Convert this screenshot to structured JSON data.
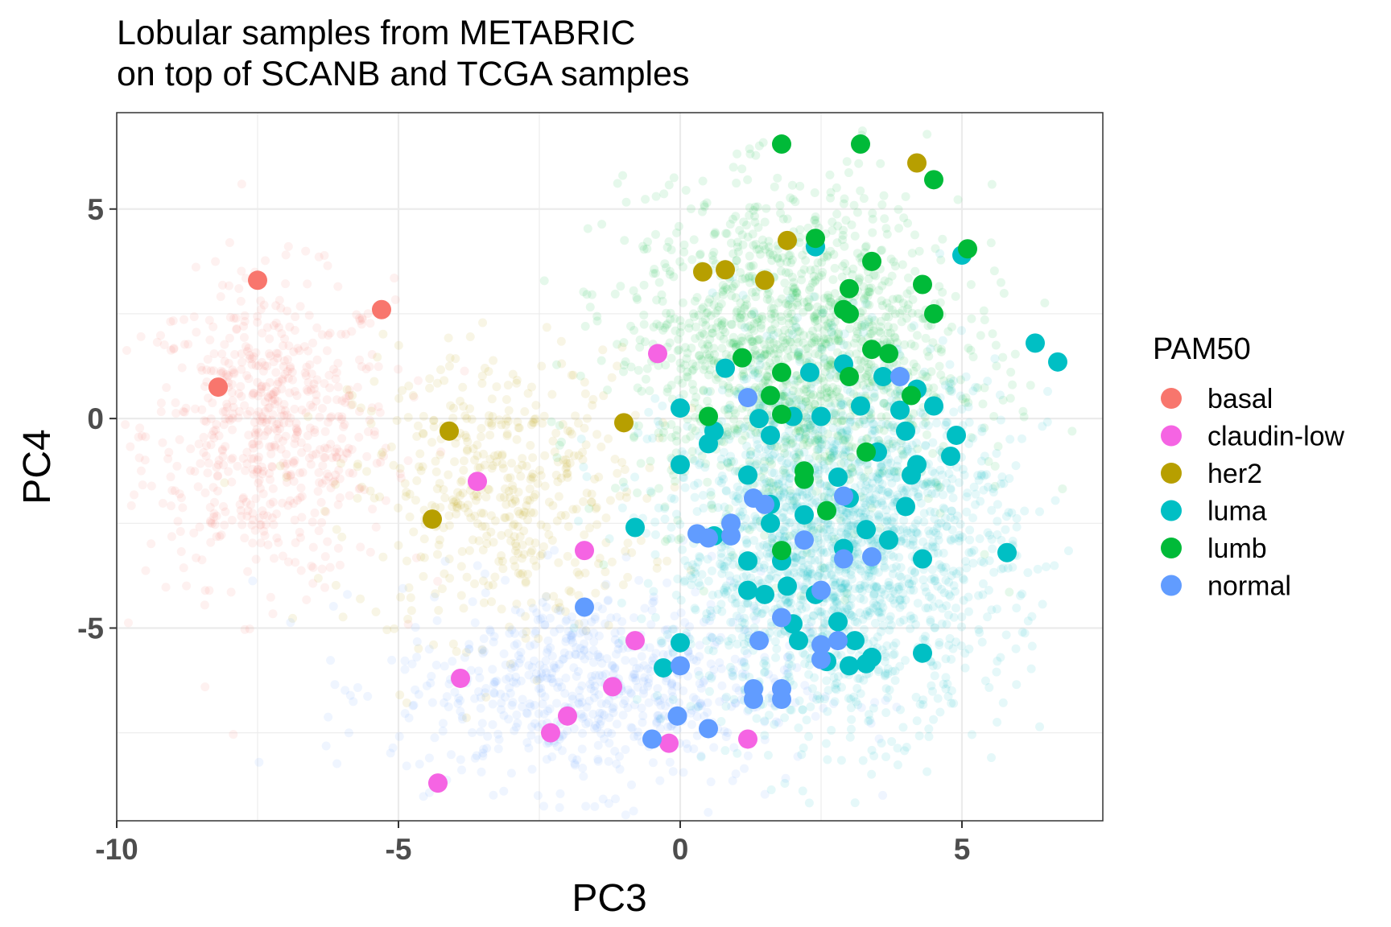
{
  "chart_data": {
    "type": "scatter",
    "title": "Lobular samples from METABRIC",
    "subtitle": "on top of SCANB and TCGA samples",
    "xlabel": "PC3",
    "ylabel": "PC4",
    "xlim": [
      -10,
      7.5
    ],
    "ylim": [
      -9.6,
      7.3
    ],
    "x_ticks": [
      -10,
      -5,
      0,
      5
    ],
    "x_tick_labels": [
      "-10",
      "-5",
      "0",
      "5"
    ],
    "y_ticks": [
      -5,
      0,
      5
    ],
    "y_tick_labels": [
      "-5",
      "0",
      "5"
    ],
    "grid": true,
    "legend": {
      "title": "PAM50",
      "position": "right",
      "entries": [
        {
          "name": "basal",
          "color": "#F8766D"
        },
        {
          "name": "claudin-low",
          "color": "#F564E3"
        },
        {
          "name": "her2",
          "color": "#B79F00"
        },
        {
          "name": "luma",
          "color": "#00BFC4"
        },
        {
          "name": "lumb",
          "color": "#00BA38"
        },
        {
          "name": "normal",
          "color": "#619CFF"
        }
      ]
    },
    "background_clouds": [
      {
        "name": "basal",
        "color": "#F8766D",
        "cx": -7.3,
        "cy": -0.3,
        "sx": 1.1,
        "sy": 1.8,
        "n": 650
      },
      {
        "name": "her2",
        "color": "#B79F00",
        "cx": -3.2,
        "cy": -1.8,
        "sx": 1.3,
        "sy": 1.7,
        "n": 500
      },
      {
        "name": "normal",
        "color": "#619CFF",
        "cx": -1.5,
        "cy": -6.4,
        "sx": 1.8,
        "sy": 1.2,
        "n": 700
      },
      {
        "name": "lumb",
        "color": "#00BA38",
        "cx": 2.0,
        "cy": 1.6,
        "sx": 1.5,
        "sy": 1.9,
        "n": 1500
      },
      {
        "name": "luma",
        "color": "#00BFC4",
        "cx": 2.8,
        "cy": -3.0,
        "sx": 1.5,
        "sy": 2.1,
        "n": 2000
      }
    ],
    "series": [
      {
        "name": "basal",
        "color": "#F8766D",
        "points": [
          [
            -7.5,
            3.3
          ],
          [
            -5.3,
            2.6
          ],
          [
            -8.2,
            0.75
          ]
        ]
      },
      {
        "name": "claudin-low",
        "color": "#F564E3",
        "points": [
          [
            -0.4,
            1.55
          ],
          [
            -3.6,
            -1.5
          ],
          [
            -1.7,
            -3.15
          ],
          [
            -0.8,
            -5.3
          ],
          [
            -3.9,
            -6.2
          ],
          [
            -1.2,
            -6.4
          ],
          [
            -2.0,
            -7.1
          ],
          [
            -2.3,
            -7.5
          ],
          [
            -0.2,
            -7.75
          ],
          [
            1.2,
            -7.65
          ],
          [
            -4.3,
            -8.7
          ]
        ]
      },
      {
        "name": "her2",
        "color": "#B79F00",
        "points": [
          [
            4.2,
            6.1
          ],
          [
            1.9,
            4.25
          ],
          [
            0.4,
            3.5
          ],
          [
            0.8,
            3.55
          ],
          [
            1.5,
            3.3
          ],
          [
            -4.1,
            -0.3
          ],
          [
            -1.0,
            -0.1
          ],
          [
            -4.4,
            -2.4
          ]
        ]
      },
      {
        "name": "luma",
        "color": "#00BFC4",
        "points": [
          [
            2.4,
            4.1
          ],
          [
            5.0,
            3.9
          ],
          [
            6.3,
            1.8
          ],
          [
            6.7,
            1.35
          ],
          [
            0.8,
            1.2
          ],
          [
            2.3,
            1.1
          ],
          [
            2.9,
            1.3
          ],
          [
            3.6,
            1.0
          ],
          [
            4.2,
            0.7
          ],
          [
            0.0,
            0.25
          ],
          [
            1.4,
            0.0
          ],
          [
            2.0,
            0.05
          ],
          [
            2.5,
            0.05
          ],
          [
            3.2,
            0.3
          ],
          [
            3.9,
            0.2
          ],
          [
            4.5,
            0.3
          ],
          [
            0.6,
            -0.3
          ],
          [
            1.6,
            -0.4
          ],
          [
            4.0,
            -0.3
          ],
          [
            4.9,
            -0.4
          ],
          [
            0.5,
            -0.6
          ],
          [
            3.5,
            -0.8
          ],
          [
            4.8,
            -0.9
          ],
          [
            0.0,
            -1.1
          ],
          [
            4.2,
            -1.1
          ],
          [
            1.2,
            -1.35
          ],
          [
            2.8,
            -1.4
          ],
          [
            4.1,
            -1.35
          ],
          [
            1.6,
            -2.05
          ],
          [
            3.0,
            -1.9
          ],
          [
            4.0,
            -2.1
          ],
          [
            -0.8,
            -2.6
          ],
          [
            0.6,
            -2.8
          ],
          [
            1.6,
            -2.5
          ],
          [
            2.2,
            -2.3
          ],
          [
            3.3,
            -2.65
          ],
          [
            3.7,
            -2.9
          ],
          [
            5.8,
            -3.2
          ],
          [
            1.2,
            -3.4
          ],
          [
            1.8,
            -3.4
          ],
          [
            2.9,
            -3.1
          ],
          [
            4.3,
            -3.35
          ],
          [
            1.2,
            -4.1
          ],
          [
            1.5,
            -4.2
          ],
          [
            1.9,
            -4.0
          ],
          [
            2.4,
            -4.2
          ],
          [
            2.0,
            -4.9
          ],
          [
            2.8,
            -4.85
          ],
          [
            2.1,
            -5.3
          ],
          [
            3.1,
            -5.3
          ],
          [
            0.0,
            -5.35
          ],
          [
            4.3,
            -5.6
          ],
          [
            -0.3,
            -5.95
          ],
          [
            2.6,
            -5.8
          ],
          [
            3.0,
            -5.9
          ],
          [
            3.3,
            -5.85
          ],
          [
            3.4,
            -5.7
          ]
        ]
      },
      {
        "name": "lumb",
        "color": "#00BA38",
        "points": [
          [
            1.8,
            6.55
          ],
          [
            3.2,
            6.55
          ],
          [
            4.5,
            5.7
          ],
          [
            2.4,
            4.3
          ],
          [
            5.1,
            4.05
          ],
          [
            3.4,
            3.75
          ],
          [
            2.9,
            2.6
          ],
          [
            3.0,
            2.5
          ],
          [
            3.0,
            3.1
          ],
          [
            4.3,
            3.2
          ],
          [
            4.5,
            2.5
          ],
          [
            3.4,
            1.65
          ],
          [
            3.7,
            1.55
          ],
          [
            1.1,
            1.45
          ],
          [
            1.8,
            1.1
          ],
          [
            3.0,
            1.0
          ],
          [
            1.6,
            0.55
          ],
          [
            4.1,
            0.55
          ],
          [
            0.5,
            0.05
          ],
          [
            1.8,
            0.1
          ],
          [
            3.3,
            -0.8
          ],
          [
            2.2,
            -1.25
          ],
          [
            2.2,
            -1.45
          ],
          [
            2.6,
            -2.2
          ],
          [
            1.8,
            -3.15
          ]
        ]
      },
      {
        "name": "normal",
        "color": "#619CFF",
        "points": [
          [
            3.9,
            1.0
          ],
          [
            1.2,
            0.5
          ],
          [
            1.3,
            -1.9
          ],
          [
            1.5,
            -2.05
          ],
          [
            2.9,
            -1.85
          ],
          [
            0.3,
            -2.75
          ],
          [
            0.5,
            -2.85
          ],
          [
            0.9,
            -2.5
          ],
          [
            0.9,
            -2.8
          ],
          [
            2.2,
            -2.9
          ],
          [
            2.9,
            -3.35
          ],
          [
            3.4,
            -3.3
          ],
          [
            -1.7,
            -4.5
          ],
          [
            2.5,
            -4.1
          ],
          [
            1.8,
            -4.75
          ],
          [
            1.4,
            -5.3
          ],
          [
            2.5,
            -5.4
          ],
          [
            2.8,
            -5.3
          ],
          [
            2.5,
            -5.75
          ],
          [
            0.0,
            -5.9
          ],
          [
            1.3,
            -6.45
          ],
          [
            1.8,
            -6.45
          ],
          [
            1.3,
            -6.7
          ],
          [
            1.8,
            -6.7
          ],
          [
            -0.05,
            -7.1
          ],
          [
            0.5,
            -7.4
          ],
          [
            -0.5,
            -7.65
          ]
        ]
      }
    ]
  }
}
